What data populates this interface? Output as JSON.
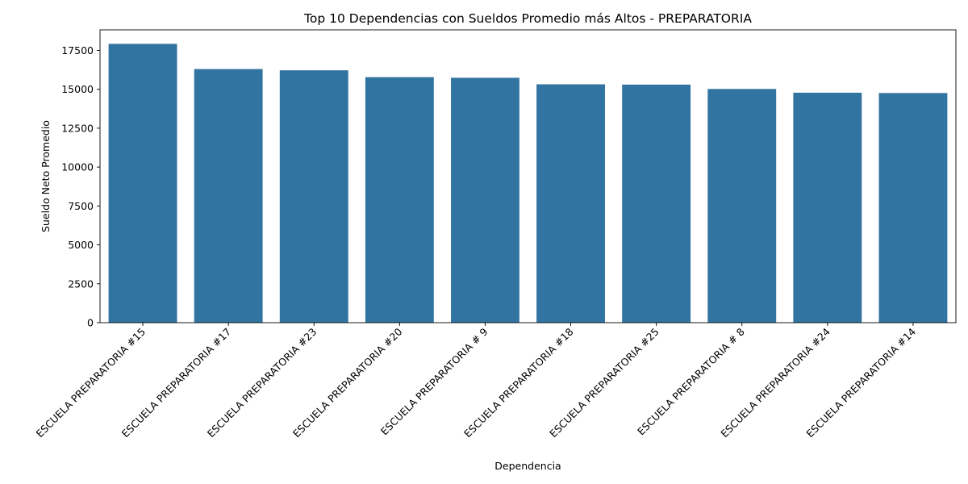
{
  "chart_data": {
    "type": "bar",
    "title": "Top 10 Dependencias con Sueldos Promedio más Altos - PREPARATORIA",
    "xlabel": "Dependencia",
    "ylabel": "Sueldo Neto Promedio",
    "categories": [
      "ESCUELA PREPARATORIA #15",
      "ESCUELA PREPARATORIA #17",
      "ESCUELA PREPARATORIA #23",
      "ESCUELA PREPARATORIA #20",
      "ESCUELA PREPARATORIA # 9",
      "ESCUELA PREPARATORIA #18",
      "ESCUELA PREPARATORIA #25",
      "ESCUELA PREPARATORIA # 8",
      "ESCUELA PREPARATORIA #24",
      "ESCUELA PREPARATORIA #14"
    ],
    "values": [
      17920,
      16300,
      16220,
      15780,
      15740,
      15320,
      15300,
      15020,
      14780,
      14760
    ],
    "ylim": [
      0,
      18820
    ],
    "yticks": [
      0,
      2500,
      5000,
      7500,
      10000,
      12500,
      15000,
      17500
    ],
    "bar_color": "#3274a1",
    "grid": false,
    "legend": "none"
  }
}
